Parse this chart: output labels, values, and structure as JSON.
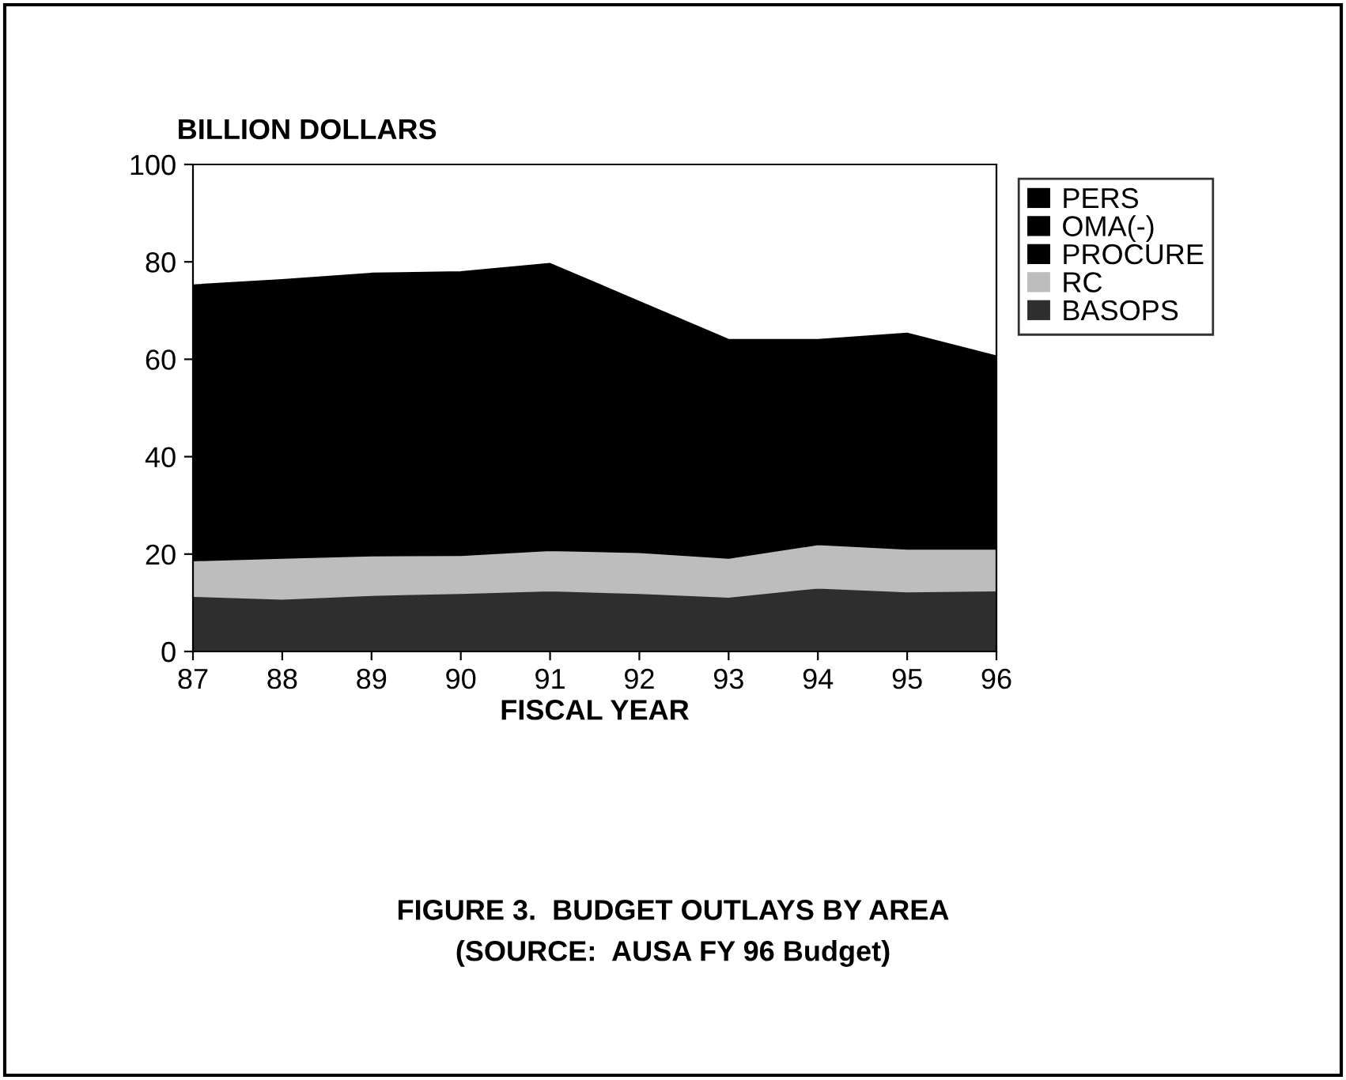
{
  "chart_data": {
    "type": "area",
    "stacked": true,
    "title": "FIGURE 3.  BUDGET OUTLAYS BY AREA",
    "annotations": [
      "(SOURCE:  AUSA FY 96 Budget)"
    ],
    "ylabel": "BILLION DOLLARS",
    "xlabel": "FISCAL YEAR",
    "x": [
      87,
      88,
      89,
      90,
      91,
      92,
      93,
      94,
      95,
      96
    ],
    "xlim": [
      87,
      96
    ],
    "xticks": [
      87,
      88,
      89,
      90,
      91,
      92,
      93,
      94,
      95,
      96
    ],
    "ylim": [
      0,
      100
    ],
    "yticks": [
      0,
      20,
      40,
      60,
      80,
      100
    ],
    "grid": false,
    "legend": "top right",
    "series": [
      {
        "name": "BASOPS",
        "color": "#2e2e2e",
        "values": [
          11.4,
          10.8,
          11.6,
          12.0,
          12.5,
          12.0,
          11.2,
          13.1,
          12.3,
          12.5
        ]
      },
      {
        "name": "RC",
        "color": "#bdbdbd",
        "values": [
          7.3,
          8.4,
          8.1,
          7.8,
          8.3,
          8.4,
          8.0,
          8.9,
          8.8,
          8.6
        ]
      },
      {
        "name": "PROCURE",
        "color": "#000000",
        "values": [
          null,
          null,
          null,
          null,
          null,
          null,
          null,
          null,
          null,
          null
        ]
      },
      {
        "name": "OMA(-)",
        "color": "#000000",
        "values": [
          null,
          null,
          null,
          null,
          null,
          null,
          null,
          null,
          null,
          null
        ]
      },
      {
        "name": "PERS",
        "color": "#000000",
        "values": [
          56.5,
          57.1,
          57.9,
          58.1,
          58.8,
          51.4,
          44.8,
          42.0,
          44.2,
          39.5
        ]
      }
    ]
  }
}
